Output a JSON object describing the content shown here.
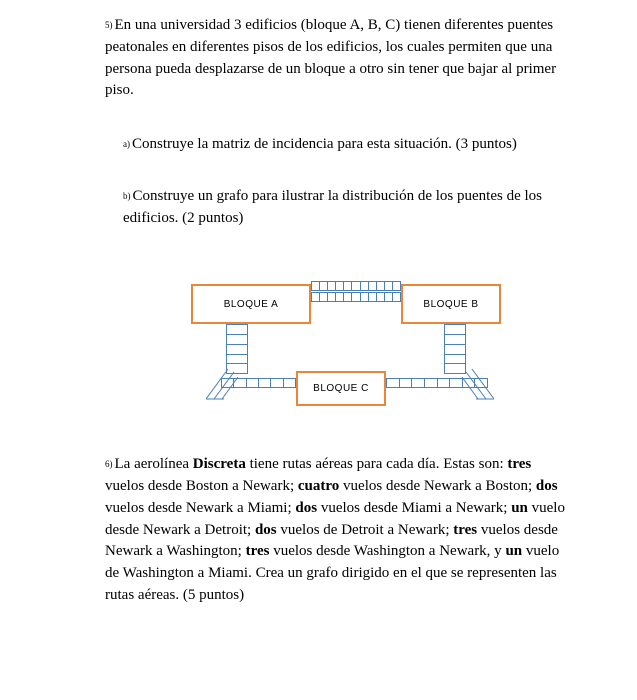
{
  "q5": {
    "marker": "5)",
    "text": "En una universidad 3 edificios (bloque A, B, C) tienen diferentes puentes peatonales en diferentes pisos de los edificios, los cuales permiten que una persona pueda desplazarse de un bloque a otro sin tener que bajar al primer piso.",
    "a": {
      "marker": "a)",
      "text": "Construye la matriz de incidencia para esta situación. (3 puntos)"
    },
    "b": {
      "marker": "b)",
      "text": "Construye un grafo para ilustrar la distribución de los puentes de los edificios. (2 puntos)"
    }
  },
  "diagram": {
    "blockA": "BLOQUE A",
    "blockB": "BLOQUE B",
    "blockC": "BLOQUE C",
    "block_border_color": "#e8873a",
    "bridge_color": "#4a7fb8",
    "bridge_segments_ab": 11,
    "bridge_segments_vert": 5,
    "bridge_segments_bottom": 6
  },
  "q6": {
    "marker": "6)",
    "pre": "La aerolínea ",
    "bold1": "Discreta",
    "t1": " tiene rutas aéreas para cada día.  Estas son: ",
    "bold2": "tres",
    "t2": " vuelos desde Boston a Newark; ",
    "bold3": "cuatro",
    "t3": " vuelos desde Newark a Boston; ",
    "bold4": "dos",
    "t4": " vuelos desde Newark a Miami; ",
    "bold5": "dos",
    "t5": " vuelos desde Miami a Newark; ",
    "bold6": "un",
    "t6": " vuelo desde Newark a Detroit; ",
    "bold7": "dos",
    "t7": " vuelos de Detroit a Newark; ",
    "bold8": "tres",
    "t8": " vuelos desde Newark a Washington; ",
    "bold9": "tres",
    "t9": " vuelos desde Washington a Newark, y ",
    "bold10": "un",
    "t10": " vuelo de Washington a Miami. Crea un grafo dirigido en el que se representen las rutas aéreas. (5 puntos)"
  }
}
